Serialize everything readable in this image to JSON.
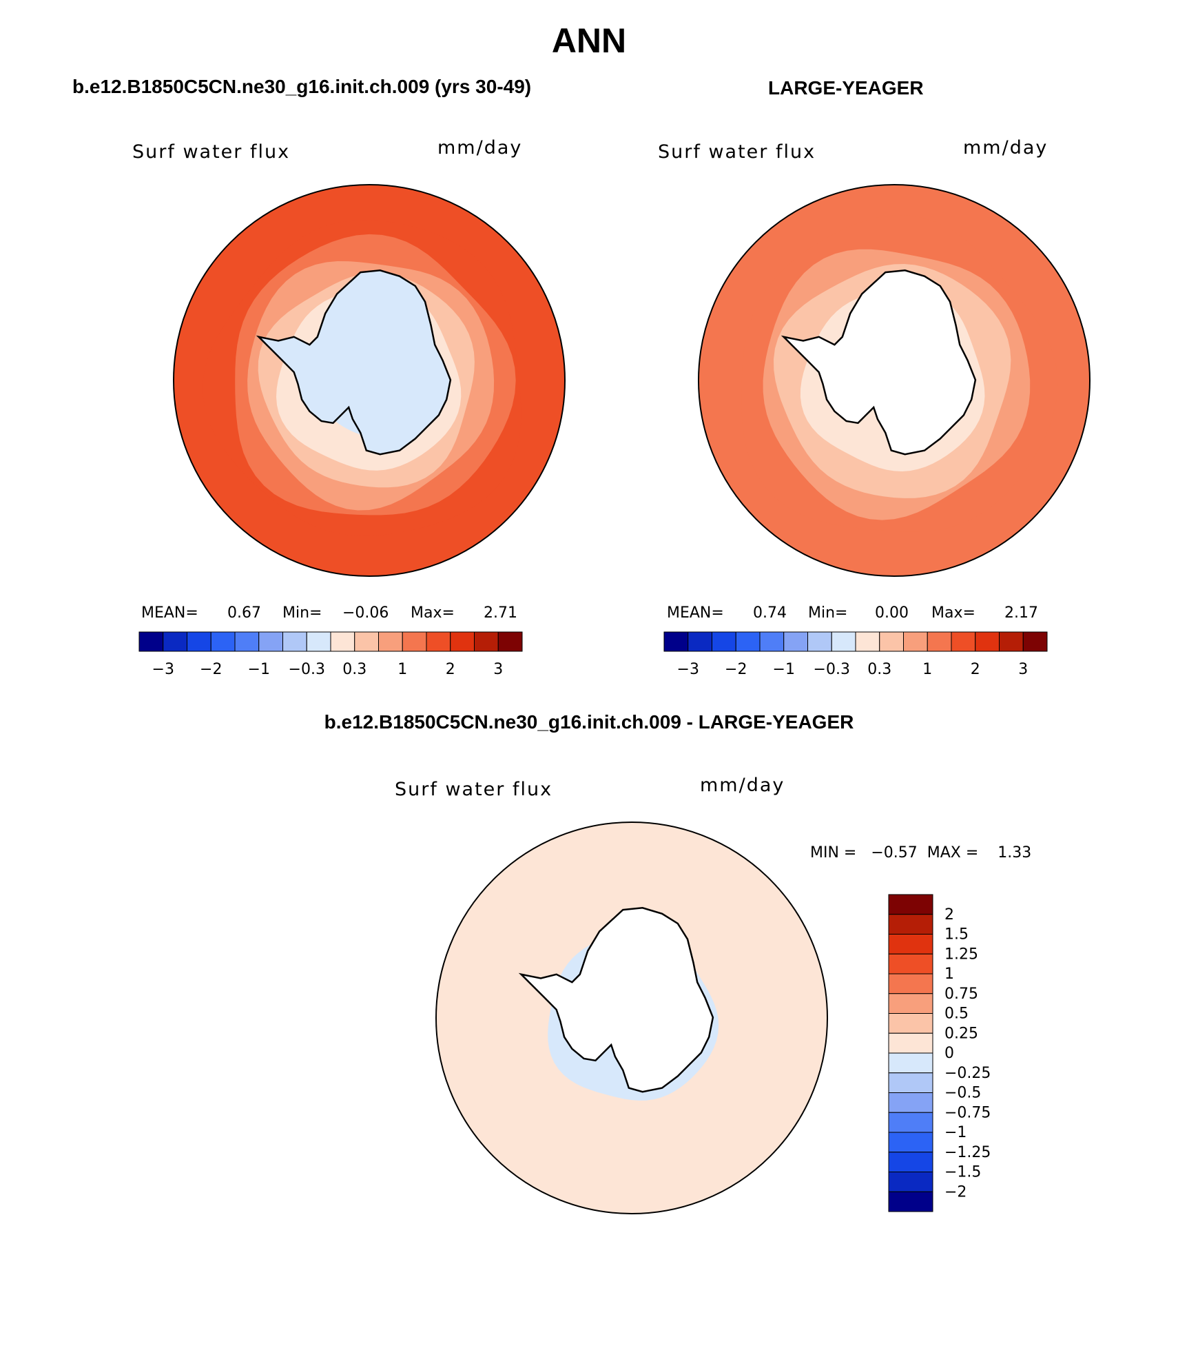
{
  "title": "ANN",
  "colors": {
    "scale": [
      "#00008a",
      "#0a29c2",
      "#1546e6",
      "#2c63f5",
      "#4f7ef7",
      "#85a3f5",
      "#b0c8f7",
      "#d7e8fb",
      "#fde5d6",
      "#fbc4a8",
      "#f89f7c",
      "#f4764f",
      "#ee4f26",
      "#e0330f",
      "#b51e06",
      "#7d0303"
    ],
    "outline": "#000000",
    "land_blank": "#ffffff"
  },
  "panels": {
    "left": {
      "case_title": "b.e12.B1850C5CN.ne30_g16.init.ch.009 (yrs 30-49)",
      "variable": "Surf water flux",
      "units": "mm/day",
      "mean_label": "MEAN=",
      "mean": "0.67",
      "min_label": "Min=",
      "min": "−0.06",
      "max_label": "Max=",
      "max": "2.71"
    },
    "right": {
      "case_title": "LARGE-YEAGER",
      "variable": "Surf water flux",
      "units": "mm/day",
      "mean_label": "MEAN=",
      "mean": "0.74",
      "min_label": "Min=",
      "min": "0.00",
      "max_label": "Max=",
      "max": "2.17"
    },
    "diff": {
      "case_title": "b.e12.B1850C5CN.ne30_g16.init.ch.009 - LARGE-YEAGER",
      "variable": "Surf water flux",
      "units": "mm/day",
      "minmax_text": "MIN =   −0.57  MAX =    1.33"
    }
  },
  "chart_data": [
    {
      "type": "heatmap",
      "title": "Surf water flux",
      "units": "mm/day",
      "projection": "south polar stereographic",
      "stats": {
        "mean": 0.67,
        "min": -0.06,
        "max": 2.71
      },
      "colorbar_ticks": [
        "−3",
        "−2",
        "−1",
        "−0.3",
        "0.3",
        "1",
        "2",
        "3"
      ],
      "contour_levels": [
        -3,
        -2.5,
        -2,
        -1.5,
        -1,
        -0.5,
        -0.3,
        0,
        0.3,
        0.5,
        1,
        1.5,
        2,
        2.5,
        3
      ],
      "rings": [
        {
          "lat": -40,
          "level": 2.0
        },
        {
          "lat": -45,
          "level": 1.5
        },
        {
          "lat": -50,
          "level": 1.0
        },
        {
          "lat": -55,
          "level": 0.5
        },
        {
          "lat": -60,
          "level": 0.3
        },
        {
          "lat": -65,
          "level": 0.1
        },
        {
          "lat": -72,
          "level": -0.1
        }
      ]
    },
    {
      "type": "heatmap",
      "title": "Surf water flux",
      "units": "mm/day",
      "projection": "south polar stereographic",
      "stats": {
        "mean": 0.74,
        "min": 0.0,
        "max": 2.17
      },
      "colorbar_ticks": [
        "−3",
        "−2",
        "−1",
        "−0.3",
        "0.3",
        "1",
        "2",
        "3"
      ],
      "contour_levels": [
        -3,
        -2.5,
        -2,
        -1.5,
        -1,
        -0.5,
        -0.3,
        0,
        0.3,
        0.5,
        1,
        1.5,
        2,
        2.5,
        3
      ],
      "rings": [
        {
          "lat": -40,
          "level": 1.5
        },
        {
          "lat": -47,
          "level": 1.0
        },
        {
          "lat": -52,
          "level": 0.5
        },
        {
          "lat": -60,
          "level": 0.3
        }
      ]
    },
    {
      "type": "heatmap",
      "title": "Surf water flux",
      "units": "mm/day",
      "projection": "south polar stereographic",
      "stats": {
        "min": -0.57,
        "max": 1.33
      },
      "colorbar_labels": [
        "2",
        "1.5",
        "1.25",
        "1",
        "0.75",
        "0.5",
        "0.25",
        "0",
        "−0.25",
        "−0.5",
        "−0.75",
        "−1",
        "−1.25",
        "−1.5",
        "−2"
      ],
      "contour_levels": [
        -2,
        -1.5,
        -1.25,
        -1,
        -0.75,
        -0.5,
        -0.25,
        0,
        0.25,
        0.5,
        0.75,
        1,
        1.25,
        1.5,
        2
      ],
      "rings": [
        {
          "lat": -40,
          "level": 0.25
        },
        {
          "lat": -52,
          "level": 0.1
        },
        {
          "lat": -62,
          "level": -0.1
        }
      ]
    }
  ]
}
